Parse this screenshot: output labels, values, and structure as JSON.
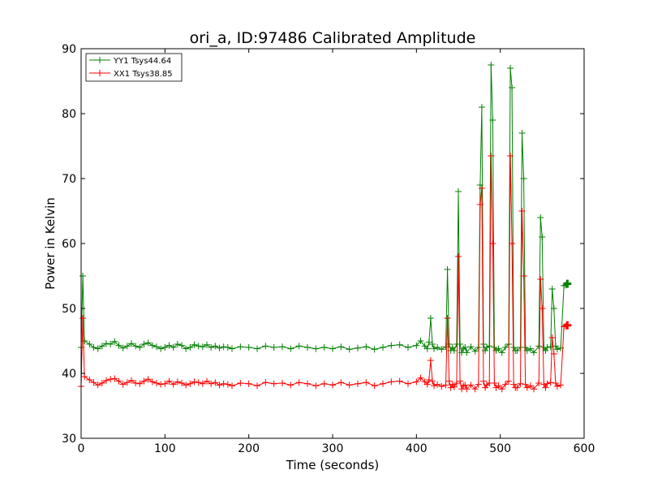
{
  "chart_data": {
    "type": "line",
    "title": "ori_a, ID:97486 Calibrated Amplitude",
    "xlabel": "Time (seconds)",
    "ylabel": "Power in Kelvin",
    "xlim": [
      0,
      600
    ],
    "ylim": [
      30,
      90
    ],
    "xticks": [
      0,
      100,
      200,
      300,
      400,
      500,
      600
    ],
    "yticks": [
      30,
      40,
      50,
      60,
      70,
      80,
      90
    ],
    "grid": false,
    "legend_position": "top-left",
    "marker": "plus",
    "series": [
      {
        "name": "YY1 Tsys44.64",
        "color": "#008000",
        "x": [
          0,
          2,
          4,
          10,
          15,
          20,
          25,
          30,
          35,
          40,
          45,
          50,
          55,
          60,
          65,
          70,
          75,
          80,
          85,
          90,
          95,
          100,
          105,
          110,
          115,
          120,
          125,
          130,
          135,
          140,
          145,
          150,
          155,
          160,
          165,
          170,
          175,
          180,
          190,
          200,
          210,
          220,
          230,
          240,
          250,
          260,
          270,
          280,
          290,
          300,
          310,
          320,
          330,
          340,
          350,
          360,
          370,
          380,
          390,
          400,
          405,
          410,
          413,
          415,
          417,
          419,
          421,
          425,
          430,
          435,
          437,
          439,
          441,
          443,
          445,
          448,
          450,
          452,
          454,
          456,
          458,
          460,
          465,
          470,
          474,
          476,
          478,
          480,
          482,
          484,
          487,
          489,
          491,
          493,
          495,
          498,
          502,
          506,
          510,
          512,
          514,
          516,
          518,
          520,
          524,
          526,
          528,
          530,
          532,
          536,
          540,
          546,
          548,
          550,
          552,
          554,
          556,
          560,
          562,
          564,
          566,
          568,
          572,
          576,
          578,
          580
        ],
        "values": [
          44,
          55,
          45,
          44.5,
          44,
          43.8,
          44.2,
          44.6,
          44.5,
          44.9,
          44.3,
          43.9,
          44.2,
          44.6,
          44.2,
          44,
          44.5,
          44.7,
          44.3,
          44.1,
          43.8,
          44,
          44.3,
          44,
          44.5,
          44.3,
          43.8,
          44,
          44.4,
          44.2,
          44.1,
          44.4,
          44,
          44.2,
          43.9,
          44.1,
          44,
          43.8,
          44.1,
          44,
          43.8,
          44.2,
          44,
          44.1,
          43.8,
          44.2,
          44,
          43.8,
          44,
          43.8,
          44.1,
          43.7,
          43.9,
          44.1,
          43.7,
          44,
          44.3,
          44.4,
          44,
          44.3,
          45,
          44.2,
          43.8,
          44.8,
          48.5,
          44.5,
          43.8,
          44,
          43.7,
          44.1,
          56,
          44.5,
          43.5,
          44,
          43.5,
          44.5,
          68,
          44.5,
          43.2,
          43.8,
          44,
          43.2,
          44.1,
          43.4,
          44,
          69,
          81,
          44.5,
          43.5,
          44,
          44.2,
          87.5,
          79,
          44,
          43.5,
          43.8,
          43.2,
          44,
          44.5,
          87,
          84,
          44,
          43.5,
          43.5,
          44,
          77,
          70,
          44,
          43.5,
          43.8,
          43.2,
          44.2,
          64,
          61,
          44,
          43.5,
          44,
          44.1,
          53,
          50,
          44.2,
          43.7,
          43.9,
          53.5,
          53.6,
          53.8
        ],
        "last_point_marker": "large-plus"
      },
      {
        "name": "XX1 Tsys38.85",
        "color": "#ff0000",
        "x": [
          0,
          2,
          4,
          10,
          15,
          20,
          25,
          30,
          35,
          40,
          45,
          50,
          55,
          60,
          65,
          70,
          75,
          80,
          85,
          90,
          95,
          100,
          105,
          110,
          115,
          120,
          125,
          130,
          135,
          140,
          145,
          150,
          155,
          160,
          165,
          170,
          175,
          180,
          190,
          200,
          210,
          220,
          230,
          240,
          250,
          260,
          270,
          280,
          290,
          300,
          310,
          320,
          330,
          340,
          350,
          360,
          370,
          380,
          390,
          400,
          405,
          410,
          413,
          415,
          417,
          419,
          421,
          425,
          430,
          435,
          437,
          439,
          441,
          443,
          445,
          448,
          450,
          452,
          454,
          456,
          458,
          460,
          465,
          470,
          474,
          476,
          478,
          480,
          482,
          484,
          487,
          489,
          491,
          493,
          495,
          498,
          502,
          506,
          510,
          512,
          514,
          516,
          518,
          520,
          524,
          526,
          528,
          530,
          532,
          536,
          540,
          546,
          548,
          550,
          552,
          554,
          556,
          560,
          562,
          564,
          566,
          568,
          572,
          576,
          578,
          580
        ],
        "values": [
          38,
          48.5,
          39.5,
          39,
          38.6,
          38.2,
          38.5,
          38.9,
          39.1,
          39.2,
          38.8,
          38.3,
          38.6,
          38.9,
          38.5,
          38.4,
          38.8,
          39.1,
          38.7,
          38.5,
          38.3,
          38.4,
          38.8,
          38.3,
          38.7,
          38.5,
          38.2,
          38.4,
          38.7,
          38.6,
          38.4,
          38.8,
          38.4,
          38.6,
          38.2,
          38.4,
          38.3,
          38.1,
          38.5,
          38.4,
          38.1,
          38.6,
          38.4,
          38.5,
          38.2,
          38.6,
          38.4,
          38.1,
          38.4,
          38.2,
          38.6,
          38.2,
          38.4,
          38.6,
          38.1,
          38.4,
          38.7,
          38.8,
          38.4,
          38.7,
          39.3,
          38.7,
          38.3,
          39,
          42,
          38.8,
          38.1,
          38.3,
          38,
          38.2,
          48.5,
          38.8,
          37.8,
          38.3,
          37.9,
          38.5,
          58,
          38.8,
          37.6,
          38.1,
          38.2,
          37.6,
          38.2,
          37.6,
          38.3,
          66,
          68.5,
          38.8,
          37.8,
          38.2,
          38.5,
          73.5,
          60,
          38.5,
          37.8,
          38.1,
          37.6,
          38.3,
          38.8,
          73.5,
          60,
          38.3,
          37.8,
          37.8,
          38.4,
          65,
          55,
          38.3,
          37.8,
          38.1,
          37.6,
          38.5,
          54.5,
          50,
          38.3,
          37.8,
          38.4,
          38.6,
          45.5,
          43,
          38.5,
          38,
          38.2,
          47.2,
          47.3,
          47.4
        ],
        "last_point_marker": "large-plus"
      }
    ]
  }
}
